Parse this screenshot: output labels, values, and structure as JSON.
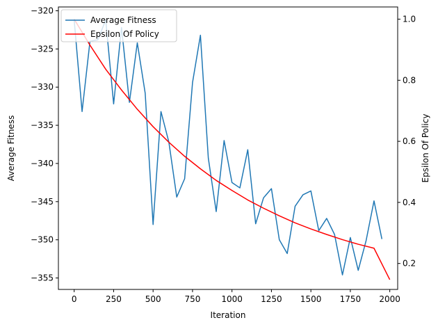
{
  "chart_data": {
    "type": "line",
    "title": "",
    "xlabel": "Iteration",
    "ylabel": "Average Fitness",
    "y2label": "Epsilon Of Policy",
    "xlim": [
      -100,
      2050
    ],
    "ylim": [
      -356.5,
      -319.5
    ],
    "y2lim": [
      0.115,
      1.04
    ],
    "xticks": [
      0,
      250,
      500,
      750,
      1000,
      1250,
      1500,
      1750,
      2000
    ],
    "yticks": [
      -320,
      -325,
      -330,
      -335,
      -340,
      -345,
      -350,
      -355
    ],
    "y2ticks": [
      0.2,
      0.4,
      0.6,
      0.8,
      1.0
    ],
    "grid": false,
    "legend": "upper-left",
    "series": [
      {
        "name": "Average Fitness",
        "axis": "left",
        "color": "#1f77b4",
        "x": [
          0,
          50,
          100,
          150,
          200,
          250,
          300,
          350,
          400,
          450,
          500,
          550,
          600,
          650,
          700,
          750,
          800,
          850,
          900,
          950,
          1000,
          1050,
          1100,
          1150,
          1200,
          1250,
          1300,
          1350,
          1400,
          1450,
          1500,
          1550,
          1600,
          1650,
          1700,
          1750,
          1800,
          1850,
          1900,
          1950
        ],
        "y": [
          -321.2,
          -333.2,
          -324,
          -323.8,
          -321.2,
          -332.2,
          -322.2,
          -332,
          -324.2,
          -330.8,
          -348,
          -333.2,
          -337.2,
          -344.4,
          -342,
          -329.4,
          -323.2,
          -339.3,
          -346.3,
          -337,
          -342.5,
          -343.2,
          -338.2,
          -347.9,
          -344.5,
          -343.3,
          -350,
          -351.8,
          -345.6,
          -344.1,
          -343.6,
          -348.8,
          -347.2,
          -349.3,
          -354.6,
          -349.7,
          -354,
          -350.1,
          -344.9,
          -349.9
        ]
      },
      {
        "name": "Epsilon Of Policy",
        "axis": "right",
        "color": "#ff0000",
        "x": [
          0,
          100,
          200,
          300,
          400,
          500,
          600,
          700,
          800,
          900,
          1000,
          1100,
          1200,
          1300,
          1400,
          1500,
          1600,
          1700,
          1800,
          1900,
          2000
        ],
        "y": [
          1.0,
          0.915,
          0.836,
          0.768,
          0.705,
          0.648,
          0.597,
          0.551,
          0.51,
          0.472,
          0.439,
          0.408,
          0.381,
          0.356,
          0.333,
          0.313,
          0.295,
          0.278,
          0.263,
          0.25,
          0.147
        ]
      }
    ]
  }
}
